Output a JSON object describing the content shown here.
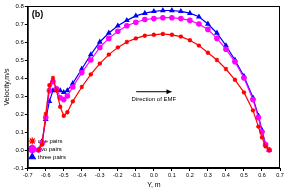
{
  "chart_data": {
    "type": "line",
    "title": "(b)",
    "x_label": "Y, m",
    "y_label": "Velocity,m/s",
    "annotations": [
      "Direction of EMF"
    ],
    "x": [
      -0.64,
      -0.62,
      -0.6,
      -0.58,
      -0.56,
      -0.54,
      -0.52,
      -0.5,
      -0.48,
      -0.45,
      -0.4,
      -0.35,
      -0.3,
      -0.25,
      -0.2,
      -0.15,
      -0.1,
      -0.05,
      0,
      0.05,
      0.1,
      0.15,
      0.2,
      0.25,
      0.3,
      0.35,
      0.4,
      0.45,
      0.5,
      0.55,
      0.58,
      0.6,
      0.62,
      0.64
    ],
    "series": [
      {
        "name": "one pairs",
        "color": "#ff0000",
        "marker": "star",
        "line_style": "solid",
        "values": [
          0,
          0.03,
          0.2,
          0.36,
          0.4,
          0.33,
          0.24,
          0.19,
          0.21,
          0.27,
          0.35,
          0.42,
          0.48,
          0.53,
          0.57,
          0.6,
          0.62,
          0.635,
          0.64,
          0.645,
          0.64,
          0.63,
          0.61,
          0.58,
          0.54,
          0.5,
          0.45,
          0.39,
          0.32,
          0.22,
          0.13,
          0.07,
          0.02,
          0
        ]
      },
      {
        "name": "two pairs",
        "color": "#ff00ff",
        "marker": "circle",
        "line_style": "solid",
        "values": [
          0,
          0.04,
          0.18,
          0.33,
          0.38,
          0.34,
          0.29,
          0.28,
          0.3,
          0.35,
          0.43,
          0.5,
          0.57,
          0.62,
          0.66,
          0.69,
          0.71,
          0.725,
          0.73,
          0.735,
          0.735,
          0.73,
          0.72,
          0.7,
          0.67,
          0.62,
          0.56,
          0.49,
          0.4,
          0.28,
          0.18,
          0.1,
          0.03,
          0
        ]
      },
      {
        "name": "three pairs",
        "color": "#0000ff",
        "marker": "triangle",
        "line_style": "solid",
        "values": [
          0,
          0.05,
          0.17,
          0.27,
          0.33,
          0.34,
          0.33,
          0.32,
          0.33,
          0.37,
          0.45,
          0.53,
          0.6,
          0.65,
          0.69,
          0.72,
          0.745,
          0.76,
          0.77,
          0.775,
          0.775,
          0.77,
          0.76,
          0.74,
          0.7,
          0.65,
          0.58,
          0.5,
          0.41,
          0.29,
          0.19,
          0.11,
          0.03,
          0
        ]
      }
    ],
    "xlim": [
      -0.7,
      0.7
    ],
    "xticks": [
      -0.7,
      -0.6,
      -0.5,
      -0.4,
      -0.3,
      -0.2,
      -0.1,
      {
        "value": 0,
        "label": "0.0"
      },
      0.1,
      0.2,
      0.3,
      0.4,
      0.5,
      0.6,
      0.7
    ],
    "ylim": [
      -0.1,
      0.8
    ],
    "yticks": [
      -0.1,
      {
        "value": 0,
        "label": "0.0"
      },
      0.1,
      0.2,
      0.3,
      0.4,
      0.5,
      0.6,
      0.7,
      0.8
    ],
    "grid": false,
    "legend": "upper right"
  }
}
